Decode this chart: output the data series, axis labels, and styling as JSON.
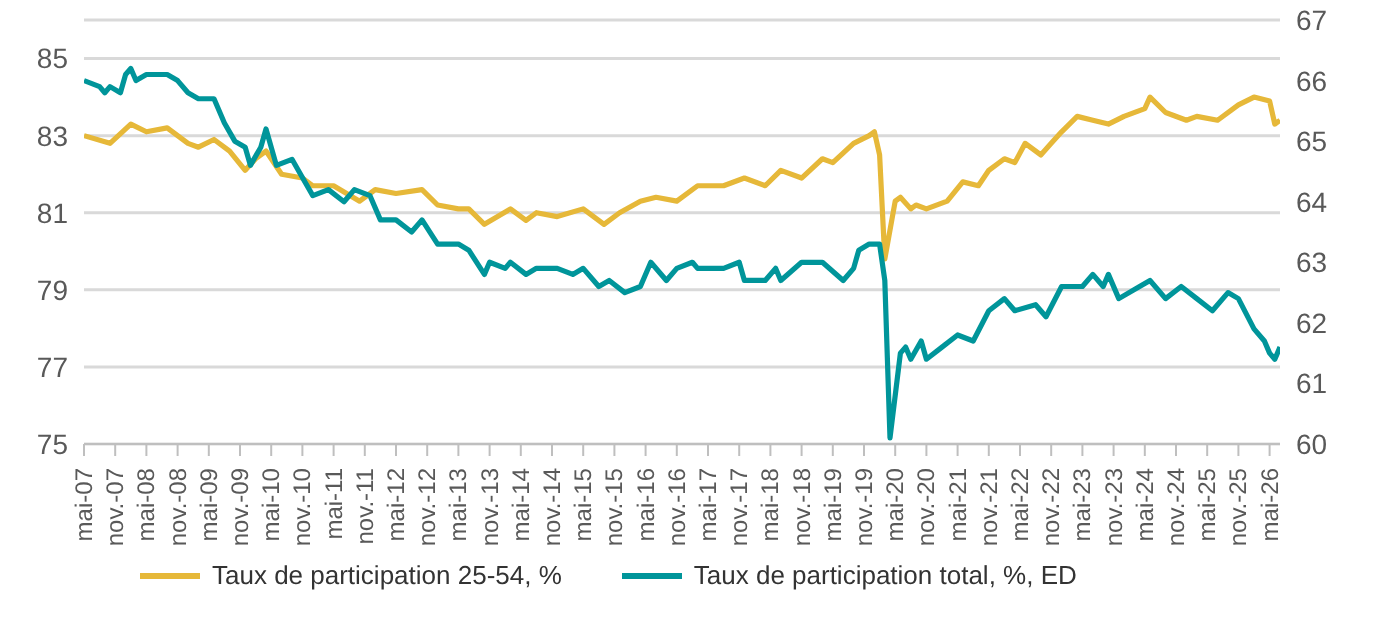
{
  "chart_data": {
    "type": "line",
    "xlim": [
      "2007-05",
      "2026-07"
    ],
    "ylim": [
      75,
      86
    ],
    "yticks": [
      75,
      77,
      79,
      81,
      83,
      85
    ],
    "y2lim": [
      60,
      67
    ],
    "y2ticks": [
      60,
      61,
      62,
      63,
      64,
      65,
      66,
      67
    ],
    "grid": "y",
    "legend": "bottom",
    "xticks": [
      {
        "value": "2007-05",
        "label": "mai-07"
      },
      {
        "value": "2007-11",
        "label": "nov.-07"
      },
      {
        "value": "2008-05",
        "label": "mai-08"
      },
      {
        "value": "2008-11",
        "label": "nov.-08"
      },
      {
        "value": "2009-05",
        "label": "mai-09"
      },
      {
        "value": "2009-11",
        "label": "nov.-09"
      },
      {
        "value": "2010-05",
        "label": "mai-10"
      },
      {
        "value": "2010-11",
        "label": "nov.-10"
      },
      {
        "value": "2011-05",
        "label": "mai-11"
      },
      {
        "value": "2011-11",
        "label": "nov.-11"
      },
      {
        "value": "2012-05",
        "label": "mai-12"
      },
      {
        "value": "2012-11",
        "label": "nov.-12"
      },
      {
        "value": "2013-05",
        "label": "mai-13"
      },
      {
        "value": "2013-11",
        "label": "nov.-13"
      },
      {
        "value": "2014-05",
        "label": "mai-14"
      },
      {
        "value": "2014-11",
        "label": "nov.-14"
      },
      {
        "value": "2015-05",
        "label": "mai-15"
      },
      {
        "value": "2015-11",
        "label": "nov.-15"
      },
      {
        "value": "2016-05",
        "label": "mai-16"
      },
      {
        "value": "2016-11",
        "label": "nov.-16"
      },
      {
        "value": "2017-05",
        "label": "mai-17"
      },
      {
        "value": "2017-11",
        "label": "nov.-17"
      },
      {
        "value": "2018-05",
        "label": "mai-18"
      },
      {
        "value": "2018-11",
        "label": "nov.-18"
      },
      {
        "value": "2019-05",
        "label": "mai-19"
      },
      {
        "value": "2019-11",
        "label": "nov.-19"
      },
      {
        "value": "2020-05",
        "label": "mai-20"
      },
      {
        "value": "2020-11",
        "label": "nov.-20"
      },
      {
        "value": "2021-05",
        "label": "mai-21"
      },
      {
        "value": "2021-11",
        "label": "nov.-21"
      },
      {
        "value": "2022-05",
        "label": "mai-22"
      },
      {
        "value": "2022-11",
        "label": "nov.-22"
      },
      {
        "value": "2023-05",
        "label": "mai-23"
      },
      {
        "value": "2023-11",
        "label": "nov.-23"
      },
      {
        "value": "2024-05",
        "label": "mai-24"
      },
      {
        "value": "2024-11",
        "label": "nov.-24"
      },
      {
        "value": "2025-05",
        "label": "mai-25"
      },
      {
        "value": "2025-11",
        "label": "nov.-25"
      },
      {
        "value": "2026-05",
        "label": "mai-26"
      }
    ],
    "series": [
      {
        "name": "Taux de participation 25-54, %",
        "color": "#e6b839",
        "x": [
          "2007-05",
          "2007-10",
          "2008-02",
          "2008-05",
          "2008-09",
          "2009-01",
          "2009-03",
          "2009-06",
          "2009-09",
          "2009-12",
          "2010-02",
          "2010-04",
          "2010-07",
          "2010-11",
          "2011-01",
          "2011-05",
          "2011-10",
          "2012-01",
          "2012-05",
          "2012-10",
          "2013-01",
          "2013-05",
          "2013-07",
          "2013-10",
          "2014-03",
          "2014-06",
          "2014-08",
          "2014-12",
          "2015-05",
          "2015-09",
          "2015-12",
          "2016-04",
          "2016-07",
          "2016-11",
          "2017-03",
          "2017-08",
          "2017-12",
          "2018-04",
          "2018-07",
          "2018-11",
          "2019-03",
          "2019-05",
          "2019-09",
          "2019-12",
          "2020-01",
          "2020-02",
          "2020-03",
          "2020-05",
          "2020-06",
          "2020-08",
          "2020-09",
          "2020-11",
          "2021-03",
          "2021-06",
          "2021-09",
          "2021-11",
          "2022-02",
          "2022-04",
          "2022-06",
          "2022-09",
          "2022-11",
          "2023-01",
          "2023-04",
          "2023-07",
          "2023-10",
          "2024-01",
          "2024-05",
          "2024-06",
          "2024-09",
          "2025-01",
          "2025-03",
          "2025-07",
          "2025-11",
          "2026-02",
          "2026-05",
          "2026-06",
          "2026-07"
        ],
        "values": [
          83.0,
          82.8,
          83.3,
          83.1,
          83.2,
          82.8,
          82.7,
          82.9,
          82.6,
          82.1,
          82.4,
          82.6,
          82.0,
          81.9,
          81.7,
          81.7,
          81.3,
          81.6,
          81.5,
          81.6,
          81.2,
          81.1,
          81.1,
          80.7,
          81.1,
          80.8,
          81.0,
          80.9,
          81.1,
          80.7,
          81.0,
          81.3,
          81.4,
          81.3,
          81.7,
          81.7,
          81.9,
          81.7,
          82.1,
          81.9,
          82.4,
          82.3,
          82.8,
          83.0,
          83.1,
          82.5,
          79.8,
          81.3,
          81.4,
          81.1,
          81.2,
          81.1,
          81.3,
          81.8,
          81.7,
          82.1,
          82.4,
          82.3,
          82.8,
          82.5,
          82.8,
          83.1,
          83.5,
          83.4,
          83.3,
          83.5,
          83.7,
          84.0,
          83.6,
          83.4,
          83.5,
          83.4,
          83.8,
          84.0,
          83.9,
          83.3,
          83.4
        ]
      },
      {
        "name": "Taux de participation total, %, ED",
        "color": "#00959a",
        "axis": "y2",
        "x": [
          "2007-05",
          "2007-08",
          "2007-09",
          "2007-10",
          "2007-12",
          "2008-01",
          "2008-02",
          "2008-03",
          "2008-05",
          "2008-07",
          "2008-09",
          "2008-11",
          "2009-01",
          "2009-03",
          "2009-06",
          "2009-08",
          "2009-10",
          "2009-12",
          "2010-01",
          "2010-03",
          "2010-04",
          "2010-06",
          "2010-09",
          "2010-11",
          "2011-01",
          "2011-04",
          "2011-07",
          "2011-09",
          "2011-12",
          "2012-02",
          "2012-05",
          "2012-08",
          "2012-10",
          "2013-01",
          "2013-05",
          "2013-07",
          "2013-10",
          "2013-11",
          "2014-02",
          "2014-03",
          "2014-06",
          "2014-08",
          "2014-12",
          "2015-03",
          "2015-05",
          "2015-08",
          "2015-10",
          "2016-01",
          "2016-04",
          "2016-06",
          "2016-09",
          "2016-11",
          "2017-02",
          "2017-03",
          "2017-08",
          "2017-11",
          "2017-12",
          "2018-04",
          "2018-06",
          "2018-07",
          "2018-11",
          "2019-03",
          "2019-07",
          "2019-09",
          "2019-10",
          "2019-12",
          "2020-02",
          "2020-03",
          "2020-04",
          "2020-06",
          "2020-07",
          "2020-08",
          "2020-10",
          "2020-11",
          "2021-02",
          "2021-05",
          "2021-08",
          "2021-11",
          "2022-02",
          "2022-04",
          "2022-08",
          "2022-10",
          "2023-01",
          "2023-05",
          "2023-07",
          "2023-09",
          "2023-10",
          "2023-12",
          "2024-04",
          "2024-06",
          "2024-09",
          "2024-12",
          "2025-03",
          "2025-06",
          "2025-09",
          "2025-11",
          "2026-02",
          "2026-04",
          "2026-05",
          "2026-06",
          "2026-07"
        ],
        "values": [
          66.0,
          65.9,
          65.8,
          65.9,
          65.8,
          66.1,
          66.2,
          66.0,
          66.1,
          66.1,
          66.1,
          66.0,
          65.8,
          65.7,
          65.7,
          65.3,
          65.0,
          64.9,
          64.6,
          64.9,
          65.2,
          64.6,
          64.7,
          64.4,
          64.1,
          64.2,
          64.0,
          64.2,
          64.1,
          63.7,
          63.7,
          63.5,
          63.7,
          63.3,
          63.3,
          63.2,
          62.8,
          63.0,
          62.9,
          63.0,
          62.8,
          62.9,
          62.9,
          62.8,
          62.9,
          62.6,
          62.7,
          62.5,
          62.6,
          63.0,
          62.7,
          62.9,
          63.0,
          62.9,
          62.9,
          63.0,
          62.7,
          62.7,
          62.9,
          62.7,
          63.0,
          63.0,
          62.7,
          62.9,
          63.2,
          63.3,
          63.3,
          62.7,
          60.1,
          61.5,
          61.6,
          61.4,
          61.7,
          61.4,
          61.6,
          61.8,
          61.7,
          62.2,
          62.4,
          62.2,
          62.3,
          62.1,
          62.6,
          62.6,
          62.8,
          62.6,
          62.8,
          62.4,
          62.6,
          62.7,
          62.4,
          62.6,
          62.4,
          62.2,
          62.5,
          62.4,
          61.9,
          61.7,
          61.5,
          61.4,
          61.6
        ]
      }
    ]
  }
}
